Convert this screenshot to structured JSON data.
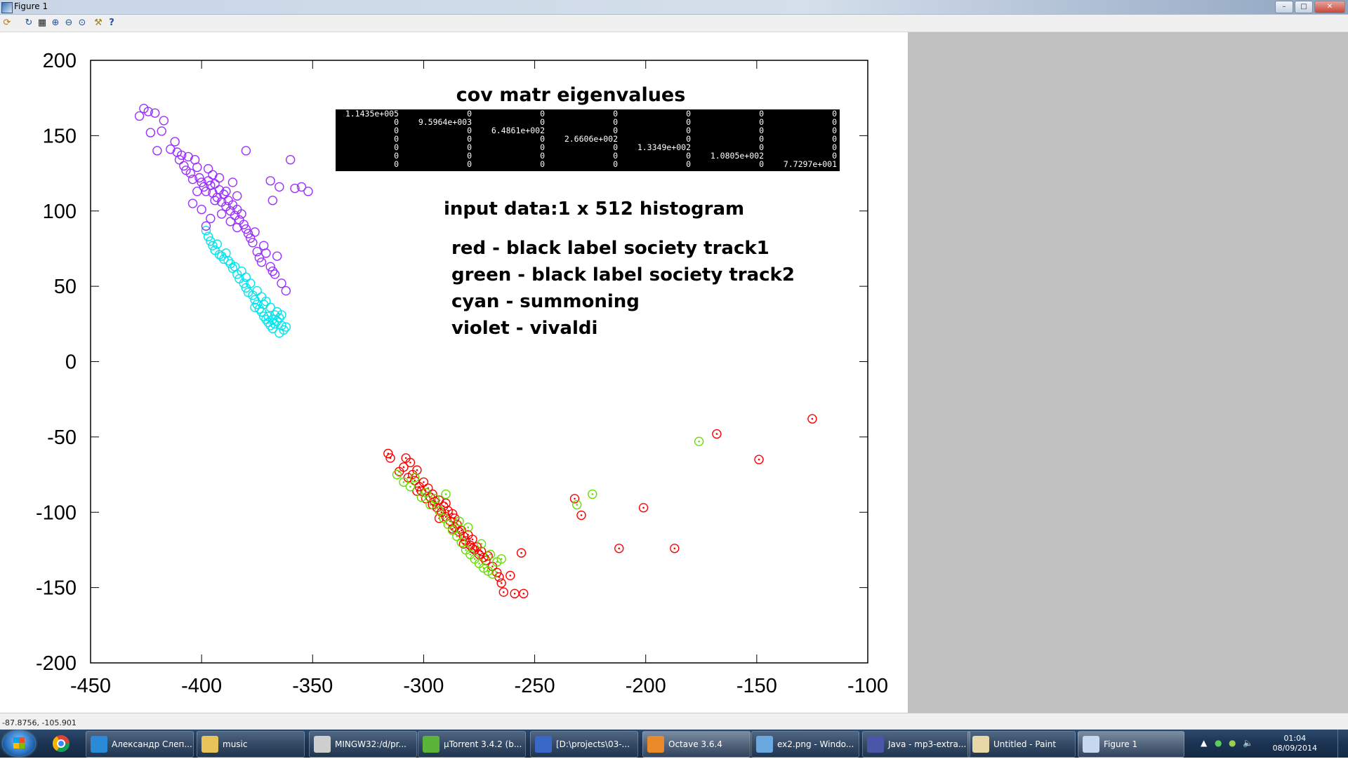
{
  "window": {
    "title": "Figure 1",
    "buttons": [
      "minimize",
      "maximize",
      "close"
    ]
  },
  "toolbar": {
    "icons": [
      "rotate-icon",
      "refresh-icon",
      "grid-icon",
      "zoom-in-icon",
      "zoom-out-icon",
      "zoom-reset-icon",
      "settings-icon",
      "help-icon"
    ]
  },
  "statusbar": {
    "coords": "-87.8756, -105.901"
  },
  "annotation": {
    "title": "cov matr eigenvalues",
    "input_line": "input data:1  x 512 histogram",
    "legend": [
      "red - black label society track1",
      "green - black label society track2",
      "cyan - summoning",
      "violet - vivaldi"
    ],
    "eigen_rows": [
      [
        "1.1435e+005",
        "0",
        "0",
        "0",
        "0",
        "0",
        "0"
      ],
      [
        "0",
        "9.5964e+003",
        "0",
        "0",
        "0",
        "0",
        "0"
      ],
      [
        "0",
        "0",
        "6.4861e+002",
        "0",
        "0",
        "0",
        "0"
      ],
      [
        "0",
        "0",
        "0",
        "2.6606e+002",
        "0",
        "0",
        "0"
      ],
      [
        "0",
        "0",
        "0",
        "0",
        "1.3349e+002",
        "0",
        "0"
      ],
      [
        "0",
        "0",
        "0",
        "0",
        "0",
        "1.0805e+002",
        "0"
      ],
      [
        "0",
        "0",
        "0",
        "0",
        "0",
        "0",
        "7.7297e+001"
      ]
    ]
  },
  "chart_data": {
    "type": "scatter",
    "xlim": [
      -450,
      -100
    ],
    "ylim": [
      -200,
      200
    ],
    "xticks": [
      -450,
      -400,
      -350,
      -300,
      -250,
      -200,
      -150,
      -100
    ],
    "yticks": [
      -200,
      -150,
      -100,
      -50,
      0,
      50,
      100,
      150,
      200
    ],
    "grid": false,
    "series": [
      {
        "name": "red - black label society track1",
        "color": "#ff0000",
        "marker": "circle-dot",
        "points": [
          [
            -316,
            -61
          ],
          [
            -315,
            -64
          ],
          [
            -311,
            -73
          ],
          [
            -309,
            -70
          ],
          [
            -308,
            -64
          ],
          [
            -306,
            -67
          ],
          [
            -305,
            -75
          ],
          [
            -303,
            -72
          ],
          [
            -304,
            -79
          ],
          [
            -302,
            -83
          ],
          [
            -300,
            -80
          ],
          [
            -301,
            -86
          ],
          [
            -298,
            -84
          ],
          [
            -297,
            -90
          ],
          [
            -296,
            -88
          ],
          [
            -295,
            -93
          ],
          [
            -294,
            -97
          ],
          [
            -293,
            -92
          ],
          [
            -292,
            -100
          ],
          [
            -291,
            -96
          ],
          [
            -290,
            -103
          ],
          [
            -289,
            -99
          ],
          [
            -288,
            -106
          ],
          [
            -287,
            -101
          ],
          [
            -286,
            -110
          ],
          [
            -285,
            -108
          ],
          [
            -284,
            -113
          ],
          [
            -283,
            -112
          ],
          [
            -282,
            -116
          ],
          [
            -281,
            -119
          ],
          [
            -280,
            -115
          ],
          [
            -279,
            -122
          ],
          [
            -278,
            -118
          ],
          [
            -277,
            -125
          ],
          [
            -276,
            -123
          ],
          [
            -275,
            -128
          ],
          [
            -274,
            -126
          ],
          [
            -273,
            -130
          ],
          [
            -272,
            -132
          ],
          [
            -271,
            -129
          ],
          [
            -296,
            -95
          ],
          [
            -299,
            -91
          ],
          [
            -293,
            -104
          ],
          [
            -287,
            -111
          ],
          [
            -282,
            -121
          ],
          [
            -278,
            -124
          ],
          [
            -286,
            -104
          ],
          [
            -290,
            -94
          ],
          [
            -307,
            -77
          ],
          [
            -303,
            -86
          ],
          [
            -269,
            -136
          ],
          [
            -267,
            -140
          ],
          [
            -266,
            -143
          ],
          [
            -265,
            -147
          ],
          [
            -264,
            -153
          ],
          [
            -261,
            -142
          ],
          [
            -259,
            -154
          ],
          [
            -256,
            -127
          ],
          [
            -255,
            -154
          ],
          [
            -232,
            -91
          ],
          [
            -229,
            -102
          ],
          [
            -212,
            -124
          ],
          [
            -201,
            -97
          ],
          [
            -187,
            -124
          ],
          [
            -168,
            -48
          ],
          [
            -149,
            -65
          ],
          [
            -125,
            -38
          ]
        ]
      },
      {
        "name": "green - black label society track2",
        "color": "#66dd00",
        "marker": "circle-dot",
        "points": [
          [
            -312,
            -75
          ],
          [
            -309,
            -80
          ],
          [
            -306,
            -83
          ],
          [
            -304,
            -77
          ],
          [
            -301,
            -90
          ],
          [
            -299,
            -87
          ],
          [
            -297,
            -95
          ],
          [
            -295,
            -91
          ],
          [
            -293,
            -99
          ],
          [
            -291,
            -104
          ],
          [
            -289,
            -108
          ],
          [
            -287,
            -112
          ],
          [
            -285,
            -116
          ],
          [
            -283,
            -120
          ],
          [
            -281,
            -125
          ],
          [
            -279,
            -128
          ],
          [
            -277,
            -131
          ],
          [
            -275,
            -134
          ],
          [
            -273,
            -137
          ],
          [
            -271,
            -139
          ],
          [
            -269,
            -141
          ],
          [
            -267,
            -133
          ],
          [
            -265,
            -131
          ],
          [
            -290,
            -88
          ],
          [
            -280,
            -110
          ],
          [
            -284,
            -106
          ],
          [
            -274,
            -121
          ],
          [
            -270,
            -128
          ],
          [
            -231,
            -95
          ],
          [
            -224,
            -88
          ],
          [
            -176,
            -53
          ]
        ]
      },
      {
        "name": "cyan - summoning",
        "color": "#00e5ee",
        "marker": "circle",
        "points": [
          [
            -398,
            87
          ],
          [
            -397,
            83
          ],
          [
            -396,
            80
          ],
          [
            -395,
            77
          ],
          [
            -394,
            74
          ],
          [
            -392,
            71
          ],
          [
            -390,
            68
          ],
          [
            -389,
            72
          ],
          [
            -387,
            65
          ],
          [
            -386,
            62
          ],
          [
            -384,
            58
          ],
          [
            -383,
            55
          ],
          [
            -381,
            52
          ],
          [
            -380,
            49
          ],
          [
            -379,
            46
          ],
          [
            -377,
            44
          ],
          [
            -376,
            41
          ],
          [
            -375,
            38
          ],
          [
            -374,
            35
          ],
          [
            -373,
            33
          ],
          [
            -372,
            30
          ],
          [
            -371,
            28
          ],
          [
            -370,
            26
          ],
          [
            -369,
            24
          ],
          [
            -368,
            22
          ],
          [
            -367,
            25
          ],
          [
            -366,
            27
          ],
          [
            -365,
            29
          ],
          [
            -364,
            24
          ],
          [
            -363,
            21
          ],
          [
            -365,
            19
          ],
          [
            -367,
            31
          ],
          [
            -369,
            36
          ],
          [
            -371,
            40
          ],
          [
            -373,
            43
          ],
          [
            -375,
            47
          ],
          [
            -378,
            52
          ],
          [
            -380,
            56
          ],
          [
            -382,
            60
          ],
          [
            -385,
            63
          ],
          [
            -388,
            67
          ],
          [
            -391,
            70
          ],
          [
            -393,
            78
          ],
          [
            -362,
            23
          ],
          [
            -366,
            33
          ],
          [
            -370,
            30
          ],
          [
            -368,
            28
          ],
          [
            -364,
            31
          ],
          [
            -376,
            36
          ],
          [
            -372,
            38
          ]
        ]
      },
      {
        "name": "violet - vivaldi",
        "color": "#9b30ff",
        "marker": "circle",
        "points": [
          [
            -428,
            163
          ],
          [
            -426,
            168
          ],
          [
            -424,
            166
          ],
          [
            -423,
            152
          ],
          [
            -421,
            165
          ],
          [
            -420,
            140
          ],
          [
            -418,
            153
          ],
          [
            -417,
            160
          ],
          [
            -414,
            141
          ],
          [
            -412,
            146
          ],
          [
            -411,
            139
          ],
          [
            -410,
            134
          ],
          [
            -409,
            137
          ],
          [
            -408,
            130
          ],
          [
            -407,
            127
          ],
          [
            -406,
            136
          ],
          [
            -405,
            125
          ],
          [
            -404,
            121
          ],
          [
            -403,
            134
          ],
          [
            -402,
            129
          ],
          [
            -401,
            122
          ],
          [
            -400,
            119
          ],
          [
            -399,
            116
          ],
          [
            -398,
            113
          ],
          [
            -397,
            120
          ],
          [
            -396,
            117
          ],
          [
            -395,
            112
          ],
          [
            -394,
            118
          ],
          [
            -393,
            109
          ],
          [
            -392,
            114
          ],
          [
            -391,
            106
          ],
          [
            -390,
            111
          ],
          [
            -389,
            103
          ],
          [
            -388,
            107
          ],
          [
            -387,
            100
          ],
          [
            -386,
            104
          ],
          [
            -385,
            97
          ],
          [
            -384,
            101
          ],
          [
            -383,
            94
          ],
          [
            -382,
            98
          ],
          [
            -381,
            91
          ],
          [
            -380,
            88
          ],
          [
            -379,
            85
          ],
          [
            -378,
            82
          ],
          [
            -377,
            79
          ],
          [
            -376,
            86
          ],
          [
            -375,
            73
          ],
          [
            -374,
            69
          ],
          [
            -373,
            66
          ],
          [
            -372,
            77
          ],
          [
            -371,
            72
          ],
          [
            -369,
            63
          ],
          [
            -368,
            60
          ],
          [
            -367,
            58
          ],
          [
            -366,
            70
          ],
          [
            -364,
            52
          ],
          [
            -362,
            47
          ],
          [
            -400,
            101
          ],
          [
            -398,
            90
          ],
          [
            -396,
            95
          ],
          [
            -394,
            107
          ],
          [
            -392,
            122
          ],
          [
            -389,
            113
          ],
          [
            -386,
            119
          ],
          [
            -384,
            110
          ],
          [
            -380,
            140
          ],
          [
            -369,
            120
          ],
          [
            -368,
            107
          ],
          [
            -365,
            116
          ],
          [
            -360,
            134
          ],
          [
            -358,
            115
          ],
          [
            -355,
            116
          ],
          [
            -352,
            113
          ],
          [
            -404,
            105
          ],
          [
            -402,
            113
          ],
          [
            -397,
            128
          ],
          [
            -395,
            124
          ],
          [
            -391,
            98
          ],
          [
            -387,
            93
          ],
          [
            -384,
            89
          ]
        ]
      }
    ]
  },
  "taskbar": {
    "items": [
      {
        "label": "Александр Слеп...",
        "icon_color": "#2a8ad8"
      },
      {
        "label": "music",
        "icon_color": "#e8c35a"
      },
      {
        "label": "MINGW32:/d/pr...",
        "icon_color": "#cfcfcf"
      },
      {
        "label": "µTorrent 3.4.2  (b...",
        "icon_color": "#5ab43a"
      },
      {
        "label": "[D:\\projects\\03-...",
        "icon_color": "#3a68c8"
      },
      {
        "label": "Octave 3.6.4",
        "icon_color": "#e88a2a"
      },
      {
        "label": "ex2.png - Windo...",
        "icon_color": "#6aa8e0"
      },
      {
        "label": "Java - mp3-extra...",
        "icon_color": "#4a56a8"
      },
      {
        "label": "Untitled - Paint",
        "icon_color": "#e8d8a8"
      },
      {
        "label": "Figure 1",
        "icon_color": "#c8d8f0"
      }
    ],
    "clock_time": "01:04",
    "clock_date": "08/09/2014"
  }
}
